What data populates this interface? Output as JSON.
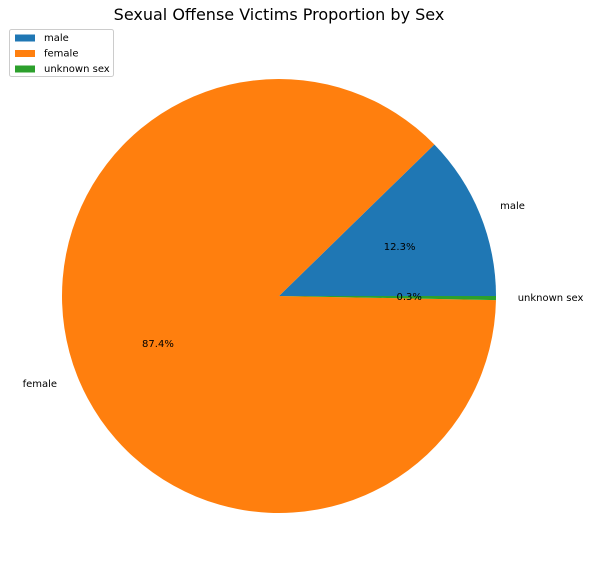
{
  "chart_data": {
    "type": "pie",
    "title": "Sexual Offense Victims Proportion by Sex",
    "slices": [
      {
        "label": "male",
        "value": 12.3,
        "pct_label": "12.3%",
        "color": "#1f77b4"
      },
      {
        "label": "female",
        "value": 87.4,
        "pct_label": "87.4%",
        "color": "#ff7f0e"
      },
      {
        "label": "unknown sex",
        "value": 0.3,
        "pct_label": "0.3%",
        "color": "#2ca02c"
      }
    ],
    "start_angle_deg": 0,
    "direction": "counterclockwise",
    "legend": {
      "position": "top-left",
      "entries": [
        "male",
        "female",
        "unknown sex"
      ]
    }
  }
}
